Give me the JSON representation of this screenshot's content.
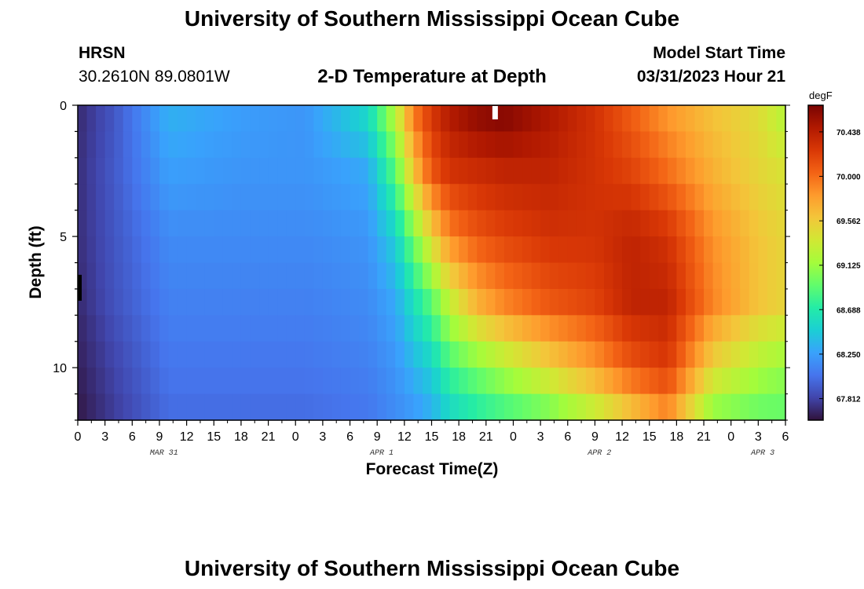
{
  "header": {
    "title": "University of Southern Mississippi Ocean Cube",
    "station": "HRSN",
    "coords": "30.2610N  89.0801W",
    "subtitle": "2-D Temperature at Depth",
    "model_start_label": "Model Start Time",
    "model_start_value": "03/31/2023 Hour 21"
  },
  "footer": {
    "title": "University of Southern Mississippi Ocean Cube"
  },
  "colors": {
    "scale": [
      "#30123b",
      "#4145ab",
      "#4675ed",
      "#39a2fc",
      "#1bcfd4",
      "#24eca6",
      "#61fc6c",
      "#a4fc3b",
      "#d1e834",
      "#f3c63a",
      "#fe9b2d",
      "#f36315",
      "#d93806",
      "#b11901",
      "#7a0402"
    ]
  },
  "chart_data": {
    "type": "heatmap",
    "xlabel": "Forecast Time(Z)",
    "ylabel": "Depth (ft)",
    "x_range_hours": [
      0,
      78
    ],
    "ylim": [
      0,
      12
    ],
    "y_inverted": true,
    "x_ticks": [
      "0",
      "3",
      "6",
      "9",
      "12",
      "15",
      "18",
      "21",
      "0",
      "3",
      "6",
      "9",
      "12",
      "15",
      "18",
      "21",
      "0",
      "3",
      "6",
      "9",
      "12",
      "15",
      "18",
      "21",
      "0",
      "3",
      "6"
    ],
    "y_ticks": [
      "0",
      "5",
      "10"
    ],
    "date_labels": [
      {
        "label": "MAR 31",
        "hour": 9.5
      },
      {
        "label": "APR 1",
        "hour": 33.5
      },
      {
        "label": "APR 2",
        "hour": 57.5
      },
      {
        "label": "APR 3",
        "hour": 75.5
      }
    ],
    "colorbar": {
      "units": "degF",
      "range": [
        67.6,
        70.7
      ],
      "ticks": [
        "70.438",
        "70.000",
        "69.562",
        "69.125",
        "68.688",
        "68.250",
        "67.812"
      ]
    },
    "markers": [
      {
        "type": "model-start",
        "hour": 46,
        "depth": 0.3,
        "color": "#ffffff"
      },
      {
        "type": "left-edge-bar",
        "hour": 0,
        "depth": 7,
        "color": "#000000"
      }
    ],
    "profile_hours": [
      0,
      4,
      10,
      18,
      25,
      32,
      35,
      37,
      39,
      41,
      44,
      47,
      52,
      57,
      61,
      65,
      70,
      75,
      78
    ],
    "profile_depths": [
      0,
      2.5,
      5,
      7.5,
      10,
      12
    ],
    "values": [
      [
        67.7,
        67.72,
        67.72,
        67.7,
        67.66,
        67.62
      ],
      [
        67.9,
        67.92,
        67.9,
        67.88,
        67.82,
        67.78
      ],
      [
        68.35,
        68.25,
        68.15,
        68.1,
        68.05,
        68.0
      ],
      [
        68.25,
        68.2,
        68.15,
        68.1,
        68.05,
        68.0
      ],
      [
        68.2,
        68.2,
        68.15,
        68.1,
        68.05,
        68.0
      ],
      [
        68.6,
        68.3,
        68.2,
        68.15,
        68.1,
        68.05
      ],
      [
        69.3,
        68.9,
        68.5,
        68.3,
        68.2,
        68.15
      ],
      [
        70.0,
        69.6,
        69.0,
        68.6,
        68.35,
        68.2
      ],
      [
        70.3,
        70.1,
        69.5,
        68.9,
        68.5,
        68.3
      ],
      [
        70.5,
        70.3,
        69.9,
        69.3,
        68.8,
        68.5
      ],
      [
        70.65,
        70.35,
        70.1,
        69.7,
        69.0,
        68.65
      ],
      [
        70.7,
        70.4,
        70.2,
        69.9,
        69.2,
        68.75
      ],
      [
        70.5,
        70.4,
        70.3,
        70.1,
        69.5,
        68.9
      ],
      [
        70.3,
        70.3,
        70.3,
        70.2,
        69.8,
        69.2
      ],
      [
        70.05,
        70.2,
        70.4,
        70.4,
        70.1,
        69.5
      ],
      [
        69.8,
        70.0,
        70.3,
        70.4,
        70.25,
        69.8
      ],
      [
        69.6,
        69.7,
        69.85,
        69.9,
        69.5,
        69.0
      ],
      [
        69.45,
        69.5,
        69.6,
        69.6,
        69.2,
        68.9
      ],
      [
        69.2,
        69.4,
        69.5,
        69.5,
        69.1,
        68.9
      ]
    ]
  }
}
